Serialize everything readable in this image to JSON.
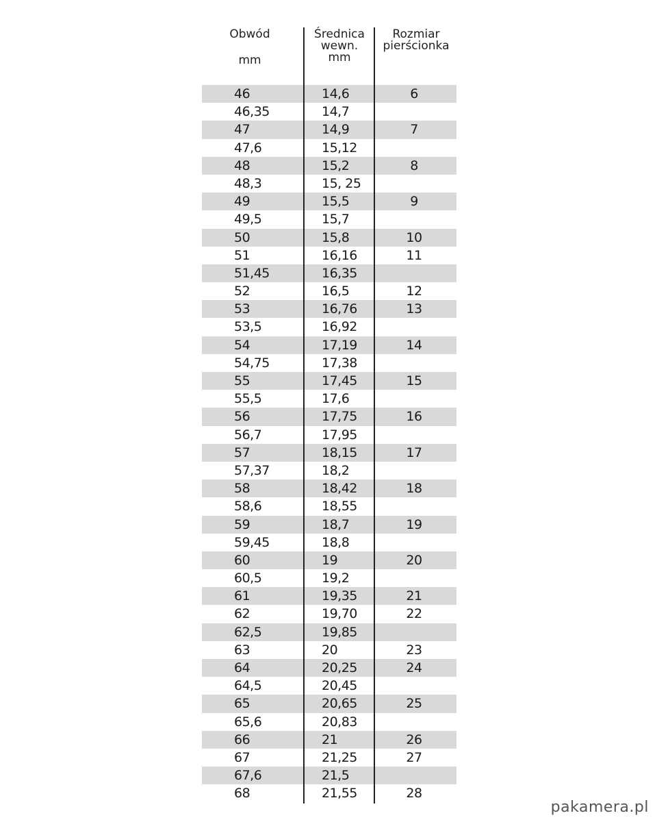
{
  "headers": {
    "col1_line1": "Obwód",
    "col1_line2": "mm",
    "col2_line1": "Średnica",
    "col2_line2": "wewn.",
    "col2_line3": "mm",
    "col3_line1": "Rozmiar",
    "col3_line2": "pierścionka"
  },
  "rows": [
    [
      "46",
      "14,6",
      "6"
    ],
    [
      "46,35",
      "14,7",
      ""
    ],
    [
      "47",
      "14,9",
      "7"
    ],
    [
      "47,6",
      "15,12",
      ""
    ],
    [
      "48",
      "15,2",
      "8"
    ],
    [
      "48,3",
      "15, 25",
      ""
    ],
    [
      "49",
      "15,5",
      "9"
    ],
    [
      "49,5",
      "15,7",
      ""
    ],
    [
      "50",
      "15,8",
      "10"
    ],
    [
      "51",
      "16,16",
      "11"
    ],
    [
      "51,45",
      "16,35",
      ""
    ],
    [
      "52",
      "16,5",
      "12"
    ],
    [
      "53",
      "16,76",
      "13"
    ],
    [
      "53,5",
      "16,92",
      ""
    ],
    [
      "54",
      "17,19",
      "14"
    ],
    [
      "54,75",
      "17,38",
      ""
    ],
    [
      "55",
      "17,45",
      "15"
    ],
    [
      "55,5",
      "17,6",
      ""
    ],
    [
      "56",
      "17,75",
      "16"
    ],
    [
      "56,7",
      "17,95",
      ""
    ],
    [
      "57",
      "18,15",
      "17"
    ],
    [
      "57,37",
      "18,2",
      ""
    ],
    [
      "58",
      "18,42",
      "18"
    ],
    [
      "58,6",
      "18,55",
      ""
    ],
    [
      "59",
      "18,7",
      "19"
    ],
    [
      "59,45",
      "18,8",
      ""
    ],
    [
      "60",
      "19",
      "20"
    ],
    [
      "60,5",
      "19,2",
      ""
    ],
    [
      "61",
      "19,35",
      "21"
    ],
    [
      "62",
      "19,70",
      "22"
    ],
    [
      "62,5",
      "19,85",
      ""
    ],
    [
      "63",
      "20",
      "23"
    ],
    [
      "64",
      "20,25",
      "24"
    ],
    [
      "64,5",
      "20,45",
      ""
    ],
    [
      "65",
      "20,65",
      "25"
    ],
    [
      "65,6",
      "20,83",
      ""
    ],
    [
      "66",
      "21",
      "26"
    ],
    [
      "67",
      "21,25",
      "27"
    ],
    [
      "67,6",
      "21,5",
      ""
    ],
    [
      "68",
      "21,55",
      "28"
    ]
  ],
  "shade_color": "#d9d9d9",
  "watermark": "pakamera.pl"
}
